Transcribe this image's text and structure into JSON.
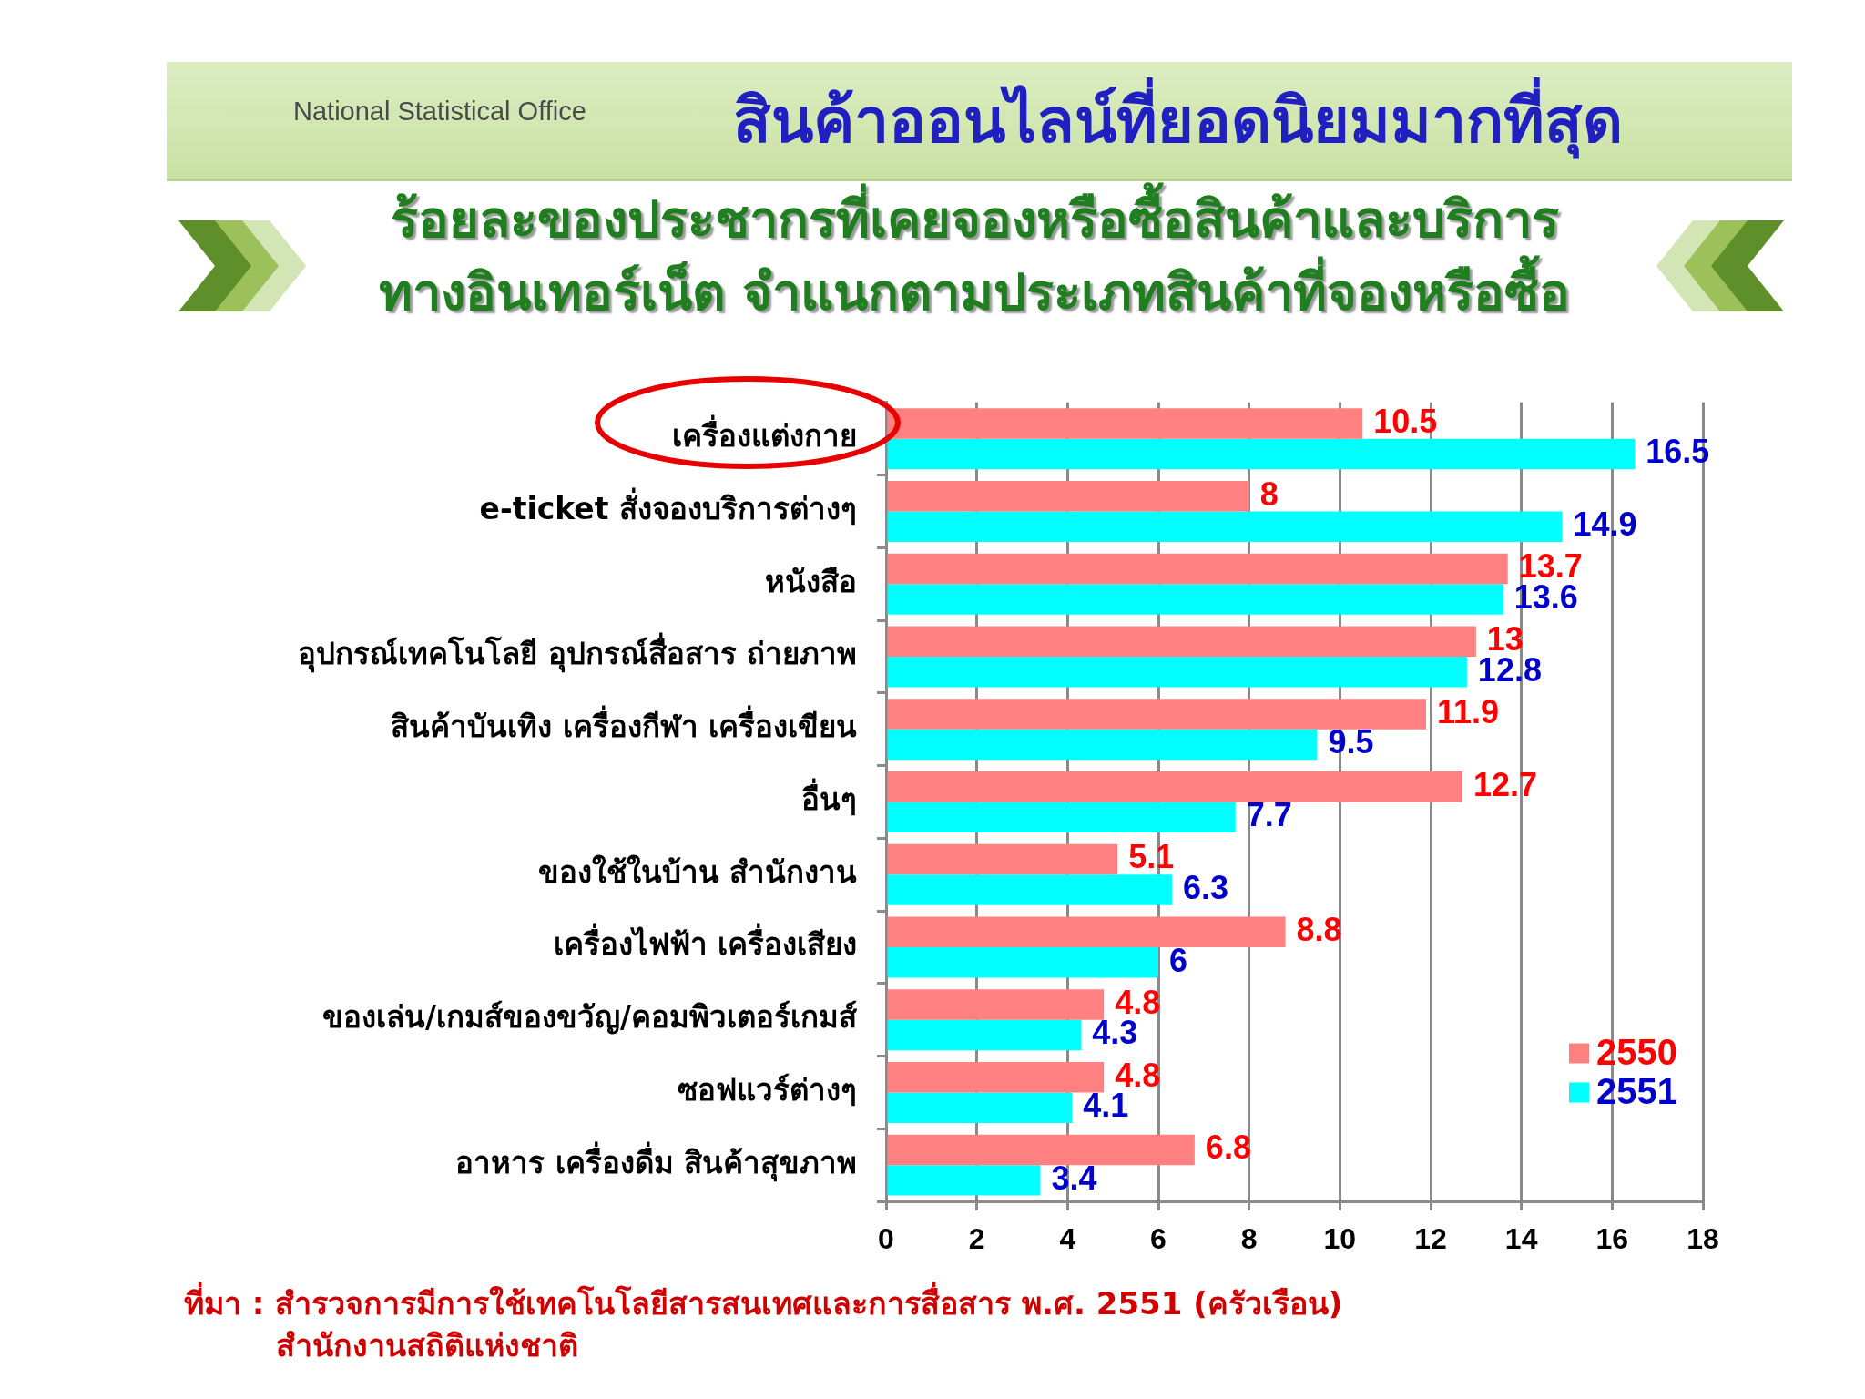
{
  "chart_data": {
    "type": "bar",
    "orientation": "horizontal",
    "title": "สินค้าออนไลน์ที่ยอดนิยมมากที่สุด",
    "subtitle": "ร้อยละของประชากรที่เคยจองหรือซื้อสินค้าและบริการ\nทางอินเทอร์เน็ต จำแนกตามประเภทสินค้าที่จองหรือซื้อ",
    "categories": [
      "เครื่องแต่งกาย",
      "e-ticket สั่งจองบริการต่างๆ",
      "หนังสือ",
      "อุปกรณ์เทคโนโลยี อุปกรณ์สื่อสาร ถ่ายภาพ",
      "สินค้าบันเทิง เครื่องกีฬา เครื่องเขียน",
      "อื่นๆ",
      "ของใช้ในบ้าน สำนักงาน",
      "เครื่องไฟฟ้า เครื่องเสียง",
      "ของเล่น/เกมส์ของขวัญ/คอมพิวเตอร์เกมส์",
      "ซอฟแวร์ต่างๆ",
      "อาหาร เครื่องดื่ม สินค้าสุขภาพ"
    ],
    "series": [
      {
        "name": "2550",
        "color": "#ff8080",
        "values": [
          10.5,
          8,
          13.7,
          13,
          11.9,
          12.7,
          5.1,
          8.8,
          4.8,
          4.8,
          6.8
        ]
      },
      {
        "name": "2551",
        "color": "#00ffff",
        "values": [
          16.5,
          14.9,
          13.6,
          12.8,
          9.5,
          7.7,
          6.3,
          6,
          4.3,
          4.1,
          3.4
        ]
      }
    ],
    "xlim": [
      0,
      18
    ],
    "xticks": [
      0,
      2,
      4,
      6,
      8,
      10,
      12,
      14,
      16,
      18
    ],
    "grid": "x",
    "legend": "bottom right",
    "data_labels": true,
    "annotations": [
      "National Statistical Office",
      "ที่มา : สำรวจการมีการใช้เทคโนโลยีสารสนเทศและการสื่อสาร พ.ศ. 2551 (ครัวเรือน)\nสำนักงานสถิติแห่งชาติ"
    ]
  }
}
